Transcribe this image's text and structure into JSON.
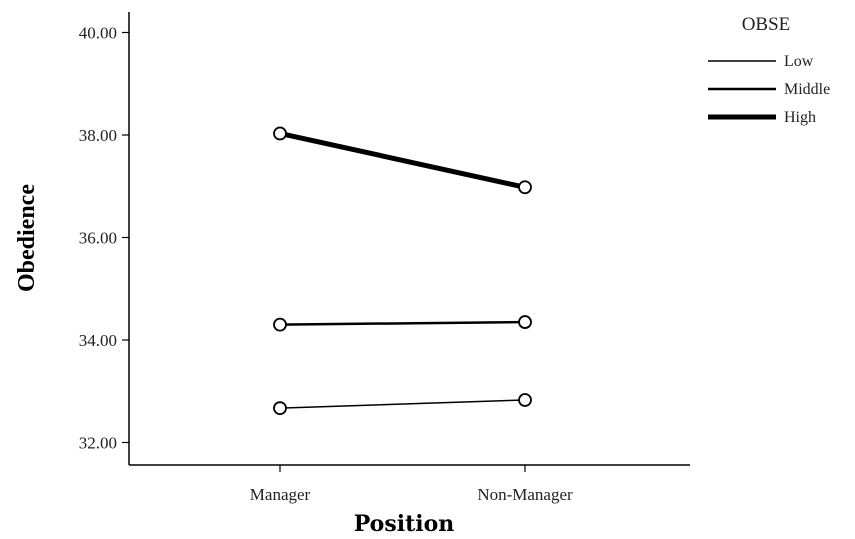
{
  "chart_data": {
    "type": "line",
    "categories": [
      "Manager",
      "Non-Manager"
    ],
    "series": [
      {
        "name": "Low",
        "values": [
          32.67,
          32.83
        ],
        "stroke": 1.5
      },
      {
        "name": "Middle",
        "values": [
          34.3,
          34.35
        ],
        "stroke": 2.5
      },
      {
        "name": "High",
        "values": [
          38.03,
          36.98
        ],
        "stroke": 5
      }
    ],
    "xlabel": "Position",
    "ylabel": "Obedience",
    "ylim": [
      31.5,
      40.5
    ],
    "yticks": [
      "32.00",
      "34.00",
      "36.00",
      "38.00",
      "40.00"
    ],
    "legend": {
      "title": "OBSE",
      "placement": "top-right"
    },
    "grid": false,
    "line_color": "#000000",
    "marker": "open-circle"
  }
}
